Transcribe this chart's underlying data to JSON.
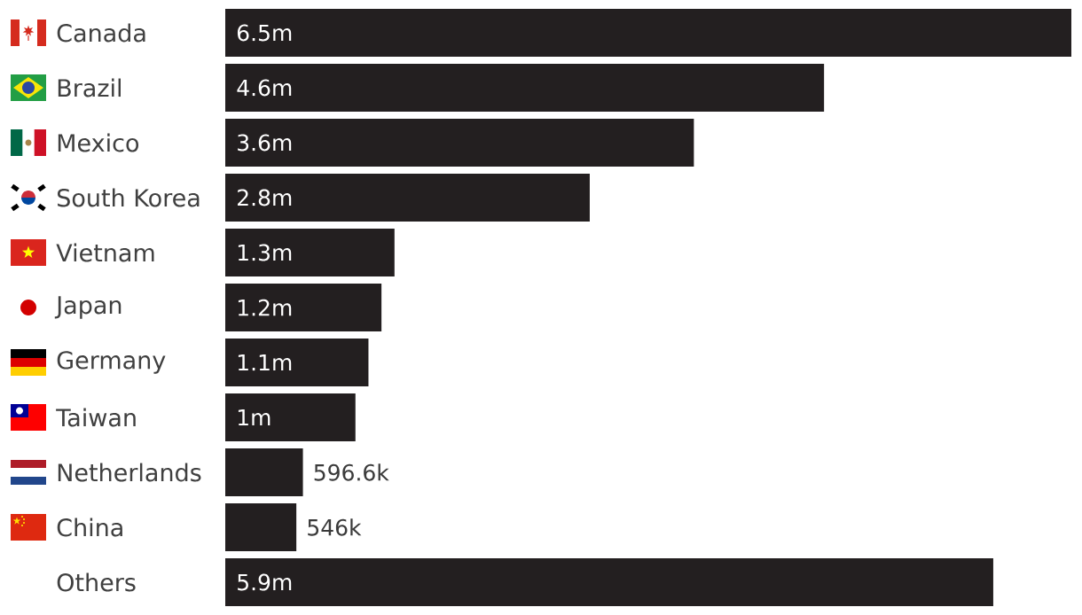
{
  "chart_data": {
    "type": "bar",
    "orientation": "horizontal",
    "categories": [
      "Canada",
      "Brazil",
      "Mexico",
      "South Korea",
      "Vietnam",
      "Japan",
      "Germany",
      "Taiwan",
      "Netherlands",
      "China",
      "Others"
    ],
    "values": [
      6500000,
      4600000,
      3600000,
      2800000,
      1300000,
      1200000,
      1100000,
      1000000,
      596600,
      546000,
      5900000
    ],
    "value_labels": [
      "6.5m",
      "4.6m",
      "3.6m",
      "2.8m",
      "1.3m",
      "1.2m",
      "1.1m",
      "1m",
      "596.6k",
      "546k",
      "5.9m"
    ],
    "color": "#231f20",
    "xlim": [
      0,
      6500000
    ],
    "tick_labels": "y"
  }
}
